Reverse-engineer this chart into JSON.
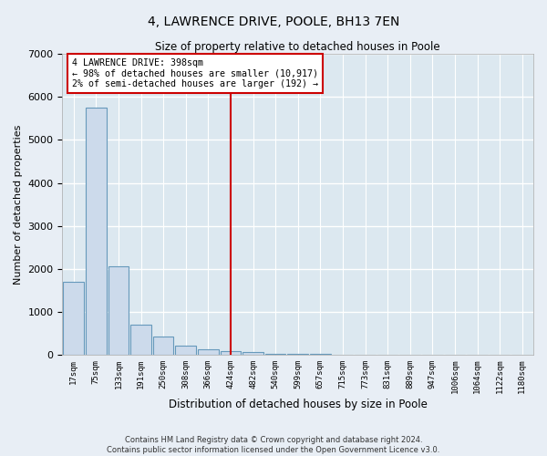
{
  "title": "4, LAWRENCE DRIVE, POOLE, BH13 7EN",
  "subtitle": "Size of property relative to detached houses in Poole",
  "xlabel": "Distribution of detached houses by size in Poole",
  "ylabel": "Number of detached properties",
  "footer_line1": "Contains HM Land Registry data © Crown copyright and database right 2024.",
  "footer_line2": "Contains public sector information licensed under the Open Government Licence v3.0.",
  "bar_labels": [
    "17sqm",
    "75sqm",
    "133sqm",
    "191sqm",
    "250sqm",
    "308sqm",
    "366sqm",
    "424sqm",
    "482sqm",
    "540sqm",
    "599sqm",
    "657sqm",
    "715sqm",
    "773sqm",
    "831sqm",
    "889sqm",
    "947sqm",
    "1006sqm",
    "1064sqm",
    "1122sqm",
    "1180sqm"
  ],
  "bar_values": [
    1700,
    5750,
    2050,
    700,
    430,
    220,
    120,
    90,
    60,
    30,
    15,
    10,
    8,
    5,
    4,
    3,
    2,
    2,
    2,
    1,
    1
  ],
  "bar_color": "#ccdaeb",
  "bar_edge_color": "#6699bb",
  "background_color": "#dce8f0",
  "fig_background_color": "#e8eef5",
  "grid_color": "#ffffff",
  "vline_x_index": 7,
  "vline_color": "#cc0000",
  "annotation_line1": "4 LAWRENCE DRIVE: 398sqm",
  "annotation_line2": "← 98% of detached houses are smaller (10,917)",
  "annotation_line3": "2% of semi-detached houses are larger (192) →",
  "annotation_box_color": "#ffffff",
  "annotation_box_edge_color": "#cc0000",
  "ylim": [
    0,
    7000
  ],
  "yticks": [
    0,
    1000,
    2000,
    3000,
    4000,
    5000,
    6000,
    7000
  ]
}
